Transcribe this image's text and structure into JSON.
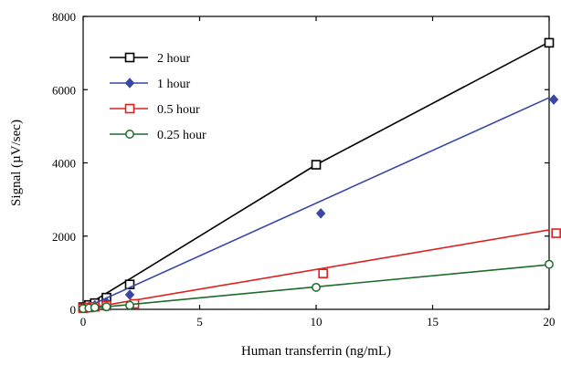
{
  "chart_data": {
    "type": "scatter",
    "xlabel": "Human transferrin (ng/mL)",
    "ylabel": "Signal (µV/sec)",
    "xlim": [
      0,
      20
    ],
    "ylim": [
      0,
      8000
    ],
    "xticks": [
      "0",
      "5",
      "10",
      "15",
      "20"
    ],
    "yticks": [
      "0",
      "2000",
      "4000",
      "6000",
      "8000"
    ],
    "grid": false,
    "legend_position": "top-left",
    "series": [
      {
        "name": "2 hour",
        "color": "#000000",
        "marker": "square-open",
        "x": [
          0,
          0.25,
          0.5,
          1,
          2,
          10,
          20
        ],
        "y": [
          60,
          120,
          170,
          320,
          680,
          3950,
          7280
        ],
        "fit": [
          [
            0,
            50
          ],
          [
            10,
            3950
          ],
          [
            20,
            7300
          ]
        ]
      },
      {
        "name": "1 hour",
        "color": "#3a46a8",
        "marker": "diamond-filled",
        "x": [
          0,
          0.25,
          0.5,
          1,
          2,
          10.2,
          20.2
        ],
        "y": [
          40,
          70,
          110,
          190,
          400,
          2620,
          5730
        ],
        "fit": [
          [
            0,
            20
          ],
          [
            20,
            5780
          ]
        ]
      },
      {
        "name": "0.5 hour",
        "color": "#e02020",
        "marker": "square-open",
        "x": [
          0,
          0.25,
          0.5,
          1,
          2.2,
          10.3,
          20.3
        ],
        "y": [
          30,
          50,
          70,
          100,
          150,
          980,
          2080
        ],
        "fit": [
          [
            0,
            10
          ],
          [
            20,
            2170
          ]
        ]
      },
      {
        "name": "0.25 hour",
        "color": "#1e6b2a",
        "marker": "circle-open",
        "x": [
          0,
          0.25,
          0.5,
          1,
          2,
          10,
          20
        ],
        "y": [
          20,
          35,
          50,
          70,
          110,
          600,
          1230
        ],
        "fit": [
          [
            0,
            10
          ],
          [
            20,
            1220
          ]
        ]
      }
    ]
  }
}
